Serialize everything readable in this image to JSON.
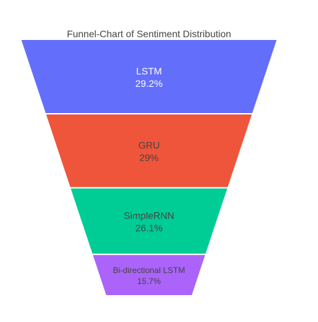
{
  "chart_data": {
    "type": "funnel",
    "title": "Funnel-Chart of Sentiment Distribution",
    "categories": [
      "LSTM",
      "GRU",
      "SimpleRNN",
      "Bi-directional LSTM"
    ],
    "values": [
      29.2,
      29,
      26.1,
      15.7
    ],
    "value_labels": [
      "29.2%",
      "29%",
      "26.1%",
      "15.7%"
    ],
    "colors": [
      "#636efa",
      "#ef553b",
      "#00cc96",
      "#ab63fa"
    ],
    "text_colors": [
      "#ffffff",
      "#444444",
      "#444444",
      "#444444"
    ],
    "legend": "none"
  }
}
